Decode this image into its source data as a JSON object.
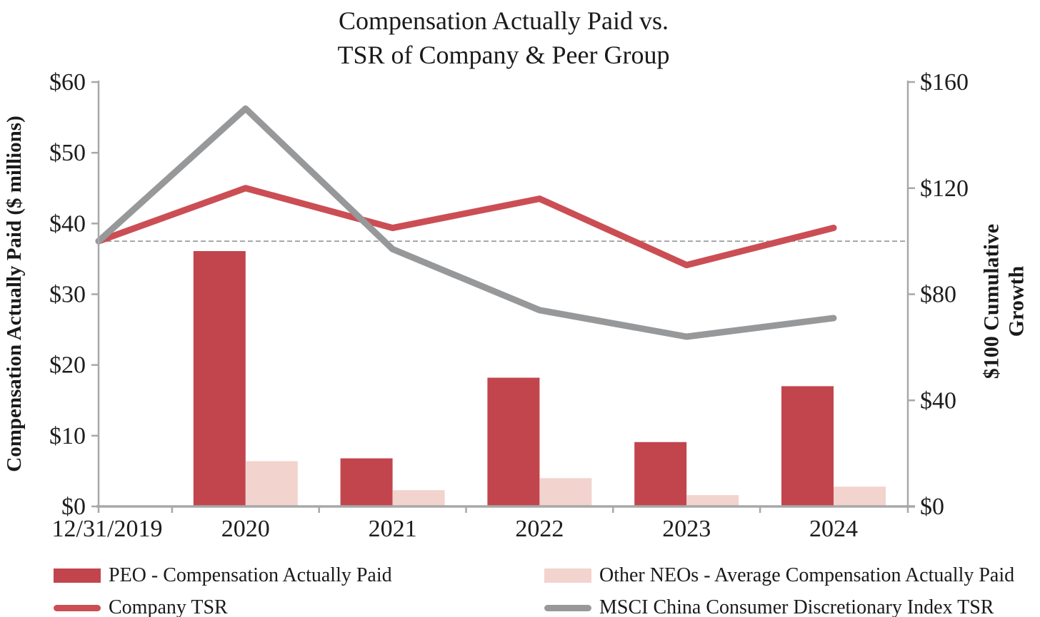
{
  "chart_data": {
    "type": "combo-bar-line",
    "title": "Compensation Actually Paid vs. TSR of Company & Peer Group",
    "title_lines": [
      "Compensation Actually Paid vs.",
      "TSR of Company & Peer Group"
    ],
    "categories": [
      "12/31/2019",
      "2020",
      "2021",
      "2022",
      "2023",
      "2024"
    ],
    "left_axis": {
      "title": "Compensation Actually Paid ($ millions)",
      "tick_labels": [
        "$0",
        "$10",
        "$20",
        "$30",
        "$40",
        "$50",
        "$60"
      ],
      "min": 0,
      "max": 60
    },
    "right_axis": {
      "title": "$100 Cumulative Growth",
      "tick_labels": [
        "$0",
        "$40",
        "$80",
        "$120",
        "$160"
      ],
      "min": 0,
      "max": 160
    },
    "bar_series": [
      {
        "name": "PEO - Compensation Actually Paid",
        "axis": "left",
        "color": "#c2454d",
        "values": [
          null,
          36.1,
          6.8,
          18.2,
          9.1,
          17.0
        ]
      },
      {
        "name": "Other NEOs - Average Compensation Actually Paid",
        "axis": "left",
        "color": "#f2d3ce",
        "values": [
          null,
          6.4,
          2.3,
          4.0,
          1.6,
          2.8
        ]
      }
    ],
    "line_series": [
      {
        "name": "Company TSR",
        "axis": "right",
        "color": "#cb4e55",
        "values": [
          100,
          120,
          105,
          116,
          91,
          105
        ]
      },
      {
        "name": "MSCI China Consumer Discretionary Index TSR",
        "axis": "right",
        "color": "#97989a",
        "values": [
          100,
          150,
          97,
          74,
          64,
          71
        ]
      }
    ],
    "reference_line": {
      "value": 100,
      "axis": "right",
      "style": "dashed",
      "color": "#8c8c8c"
    },
    "layout_hints": {
      "legend_position": "bottom",
      "grid": false,
      "axis_color": "#a8a8a8",
      "text_color": "#1d1d1d"
    }
  }
}
